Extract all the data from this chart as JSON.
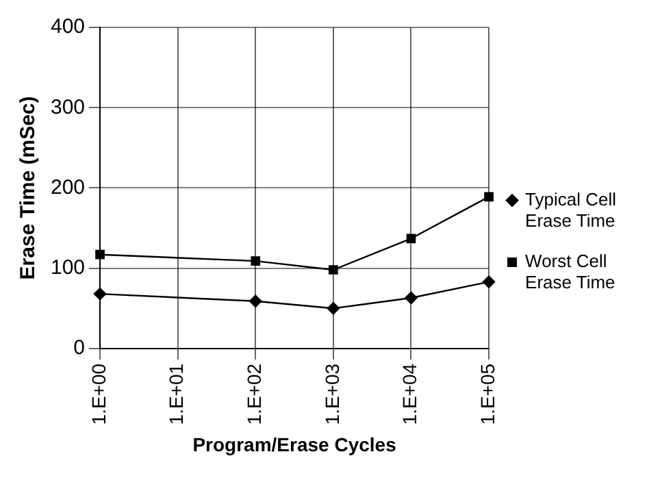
{
  "chart_data": {
    "type": "line",
    "xlabel": "Program/Erase Cycles",
    "ylabel": "Erase Time (mSec)",
    "categories": [
      "1.E+00",
      "1.E+01",
      "1.E+02",
      "1.E+03",
      "1.E+04",
      "1.E+05"
    ],
    "series": [
      {
        "name": "Typical Cell Erase Time",
        "color": "#000000",
        "marker": "diamond",
        "values": [
          68,
          null,
          59,
          50,
          63,
          83
        ]
      },
      {
        "name": "Worst Cell Erase Time",
        "color": "#000000",
        "marker": "square",
        "values": [
          117,
          null,
          109,
          98,
          137,
          189
        ]
      }
    ],
    "ylim": [
      0,
      400
    ],
    "yticks": [
      0,
      100,
      200,
      300,
      400
    ],
    "grid": true,
    "legend": "right",
    "line_style": "solid"
  }
}
